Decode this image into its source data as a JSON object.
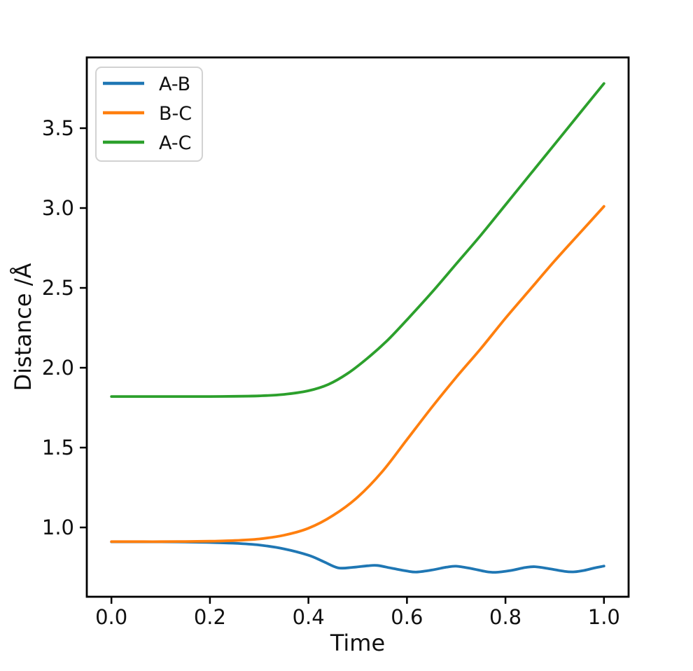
{
  "chart_data": {
    "type": "line",
    "title": "",
    "xlabel": "Time",
    "ylabel": "Distance /Å",
    "xlim": [
      -0.05,
      1.05
    ],
    "ylim": [
      0.566,
      3.943
    ],
    "grid": false,
    "legend_position": "upper left",
    "x_ticks": {
      "values": [
        0.0,
        0.2,
        0.4,
        0.6,
        0.8,
        1.0
      ],
      "labels": [
        "0.0",
        "0.2",
        "0.4",
        "0.6",
        "0.8",
        "1.0"
      ]
    },
    "y_ticks": {
      "values": [
        1.0,
        1.5,
        2.0,
        2.5,
        3.0,
        3.5
      ],
      "labels": [
        "1.0",
        "1.5",
        "2.0",
        "2.5",
        "3.0",
        "3.5"
      ]
    },
    "series": [
      {
        "name": "A-B",
        "color": "#1f77b4",
        "points": [
          [
            0.0,
            0.91
          ],
          [
            0.05,
            0.91
          ],
          [
            0.1,
            0.91
          ],
          [
            0.15,
            0.909
          ],
          [
            0.2,
            0.906
          ],
          [
            0.25,
            0.901
          ],
          [
            0.3,
            0.89
          ],
          [
            0.35,
            0.866
          ],
          [
            0.4,
            0.826
          ],
          [
            0.43,
            0.787
          ],
          [
            0.46,
            0.747
          ],
          [
            0.49,
            0.75
          ],
          [
            0.52,
            0.76
          ],
          [
            0.54,
            0.762
          ],
          [
            0.57,
            0.744
          ],
          [
            0.6,
            0.727
          ],
          [
            0.62,
            0.721
          ],
          [
            0.65,
            0.733
          ],
          [
            0.68,
            0.751
          ],
          [
            0.7,
            0.757
          ],
          [
            0.73,
            0.743
          ],
          [
            0.76,
            0.724
          ],
          [
            0.78,
            0.719
          ],
          [
            0.81,
            0.73
          ],
          [
            0.84,
            0.749
          ],
          [
            0.86,
            0.754
          ],
          [
            0.89,
            0.741
          ],
          [
            0.92,
            0.725
          ],
          [
            0.94,
            0.722
          ],
          [
            0.96,
            0.731
          ],
          [
            0.98,
            0.746
          ],
          [
            1.0,
            0.758
          ]
        ]
      },
      {
        "name": "B-C",
        "color": "#ff7f0e",
        "points": [
          [
            0.0,
            0.911
          ],
          [
            0.05,
            0.911
          ],
          [
            0.1,
            0.911
          ],
          [
            0.15,
            0.912
          ],
          [
            0.2,
            0.914
          ],
          [
            0.25,
            0.918
          ],
          [
            0.3,
            0.928
          ],
          [
            0.35,
            0.951
          ],
          [
            0.4,
            0.995
          ],
          [
            0.45,
            1.075
          ],
          [
            0.5,
            1.19
          ],
          [
            0.55,
            1.35
          ],
          [
            0.6,
            1.55
          ],
          [
            0.65,
            1.75
          ],
          [
            0.7,
            1.94
          ],
          [
            0.75,
            2.12
          ],
          [
            0.8,
            2.31
          ],
          [
            0.85,
            2.49
          ],
          [
            0.9,
            2.67
          ],
          [
            0.95,
            2.84
          ],
          [
            1.0,
            3.01
          ]
        ]
      },
      {
        "name": "A-C",
        "color": "#2ca02c",
        "points": [
          [
            0.0,
            1.82
          ],
          [
            0.05,
            1.82
          ],
          [
            0.1,
            1.82
          ],
          [
            0.15,
            1.82
          ],
          [
            0.2,
            1.82
          ],
          [
            0.25,
            1.821
          ],
          [
            0.3,
            1.824
          ],
          [
            0.35,
            1.833
          ],
          [
            0.4,
            1.856
          ],
          [
            0.44,
            1.895
          ],
          [
            0.48,
            1.965
          ],
          [
            0.52,
            2.06
          ],
          [
            0.56,
            2.17
          ],
          [
            0.6,
            2.3
          ],
          [
            0.65,
            2.47
          ],
          [
            0.7,
            2.65
          ],
          [
            0.75,
            2.83
          ],
          [
            0.8,
            3.02
          ],
          [
            0.85,
            3.21
          ],
          [
            0.9,
            3.4
          ],
          [
            0.95,
            3.59
          ],
          [
            1.0,
            3.78
          ]
        ]
      }
    ]
  },
  "colors": {
    "background": "#ffffff",
    "axis": "#000000",
    "text": "#111111",
    "legend_border": "#d2d2d2",
    "legend_fill": "#ffffff"
  }
}
